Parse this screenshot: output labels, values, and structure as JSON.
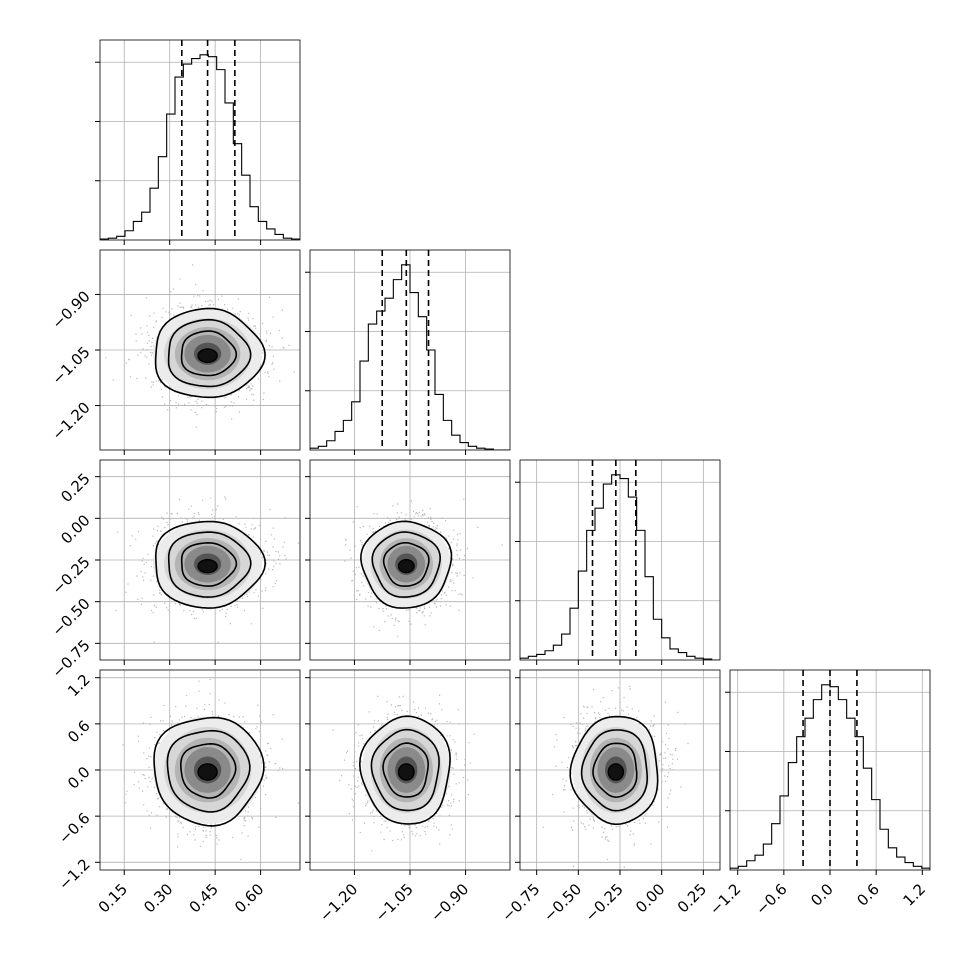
{
  "chart_data": {
    "type": "corner",
    "grid": true,
    "quantiles": [
      0.16,
      0.5,
      0.84
    ],
    "parameters": [
      {
        "range": [
          0.07,
          0.73
        ],
        "ticks": [
          0.15,
          0.3,
          0.45,
          0.6
        ],
        "tick_labels": [
          "0.15",
          "0.30",
          "0.45",
          "0.60"
        ],
        "quantile_values": [
          0.34,
          0.425,
          0.515
        ],
        "hist_edges": [
          0.07,
          0.0975,
          0.125,
          0.1525,
          0.18,
          0.2075,
          0.235,
          0.2625,
          0.29,
          0.3175,
          0.345,
          0.3725,
          0.4,
          0.4275,
          0.455,
          0.4825,
          0.51,
          0.5375,
          0.565,
          0.5925,
          0.62,
          0.6475,
          0.675,
          0.7025,
          0.73
        ],
        "hist_counts": [
          0.005,
          0.01,
          0.02,
          0.05,
          0.1,
          0.15,
          0.28,
          0.45,
          0.68,
          0.88,
          0.95,
          0.98,
          1.0,
          0.99,
          0.92,
          0.74,
          0.52,
          0.35,
          0.18,
          0.1,
          0.06,
          0.03,
          0.01,
          0.005
        ]
      },
      {
        "range": [
          -1.32,
          -0.78
        ],
        "ticks": [
          -1.2,
          -1.05,
          -0.9
        ],
        "tick_labels": [
          "−1.20",
          "−1.05",
          "−0.90"
        ],
        "quantile_values": [
          -1.125,
          -1.06,
          -1.0
        ],
        "hist_edges": [
          -1.32,
          -1.2975,
          -1.275,
          -1.2525,
          -1.23,
          -1.2075,
          -1.185,
          -1.1625,
          -1.14,
          -1.1175,
          -1.095,
          -1.0725,
          -1.05,
          -1.0275,
          -1.005,
          -0.9825,
          -0.96,
          -0.9375,
          -0.915,
          -0.8925,
          -0.87,
          -0.8475,
          -0.825,
          -0.8025,
          -0.78
        ],
        "hist_counts": [
          0.01,
          0.02,
          0.05,
          0.1,
          0.16,
          0.26,
          0.48,
          0.68,
          0.75,
          0.82,
          0.92,
          1.0,
          0.85,
          0.72,
          0.54,
          0.3,
          0.16,
          0.08,
          0.04,
          0.02,
          0.01,
          0.005,
          0.0,
          0.0
        ]
      },
      {
        "range": [
          -0.85,
          0.35
        ],
        "ticks": [
          -0.75,
          -0.5,
          -0.25,
          0.0,
          0.25
        ],
        "tick_labels": [
          "−0.75",
          "−0.50",
          "−0.25",
          "0.00",
          "0.25"
        ],
        "quantile_values": [
          -0.415,
          -0.275,
          -0.155
        ],
        "hist_edges": [
          -0.85,
          -0.8,
          -0.75,
          -0.7,
          -0.65,
          -0.6,
          -0.55,
          -0.5,
          -0.45,
          -0.4,
          -0.35,
          -0.3,
          -0.25,
          -0.2,
          -0.15,
          -0.1,
          -0.05,
          0.0,
          0.05,
          0.1,
          0.15,
          0.2,
          0.25,
          0.3,
          0.35
        ],
        "hist_counts": [
          0.01,
          0.02,
          0.03,
          0.05,
          0.08,
          0.14,
          0.28,
          0.48,
          0.7,
          0.82,
          0.95,
          1.0,
          0.98,
          0.88,
          0.7,
          0.45,
          0.22,
          0.12,
          0.06,
          0.04,
          0.02,
          0.01,
          0.005,
          0.0
        ]
      },
      {
        "range": [
          -1.3,
          1.3
        ],
        "ticks": [
          -1.2,
          -0.6,
          0.0,
          0.6,
          1.2
        ],
        "tick_labels": [
          "−1.2",
          "−0.6",
          "0.0",
          "0.6",
          "1.2"
        ],
        "quantile_values": [
          -0.35,
          0.0,
          0.35
        ],
        "hist_edges": [
          -1.3,
          -1.1917,
          -1.0833,
          -0.975,
          -0.8667,
          -0.7583,
          -0.65,
          -0.5417,
          -0.4333,
          -0.325,
          -0.2167,
          -0.1083,
          0.0,
          0.1083,
          0.2167,
          0.325,
          0.4333,
          0.5417,
          0.65,
          0.7583,
          0.8667,
          0.975,
          1.0833,
          1.1917,
          1.3
        ],
        "hist_counts": [
          0.01,
          0.02,
          0.05,
          0.08,
          0.14,
          0.25,
          0.4,
          0.58,
          0.72,
          0.82,
          0.92,
          1.0,
          0.99,
          0.92,
          0.82,
          0.72,
          0.55,
          0.38,
          0.22,
          0.12,
          0.07,
          0.04,
          0.02,
          0.01
        ]
      }
    ],
    "means": [
      0.425,
      -1.06,
      -0.275,
      0.0
    ],
    "sigmas": [
      0.09,
      0.06,
      0.13,
      0.35
    ]
  }
}
